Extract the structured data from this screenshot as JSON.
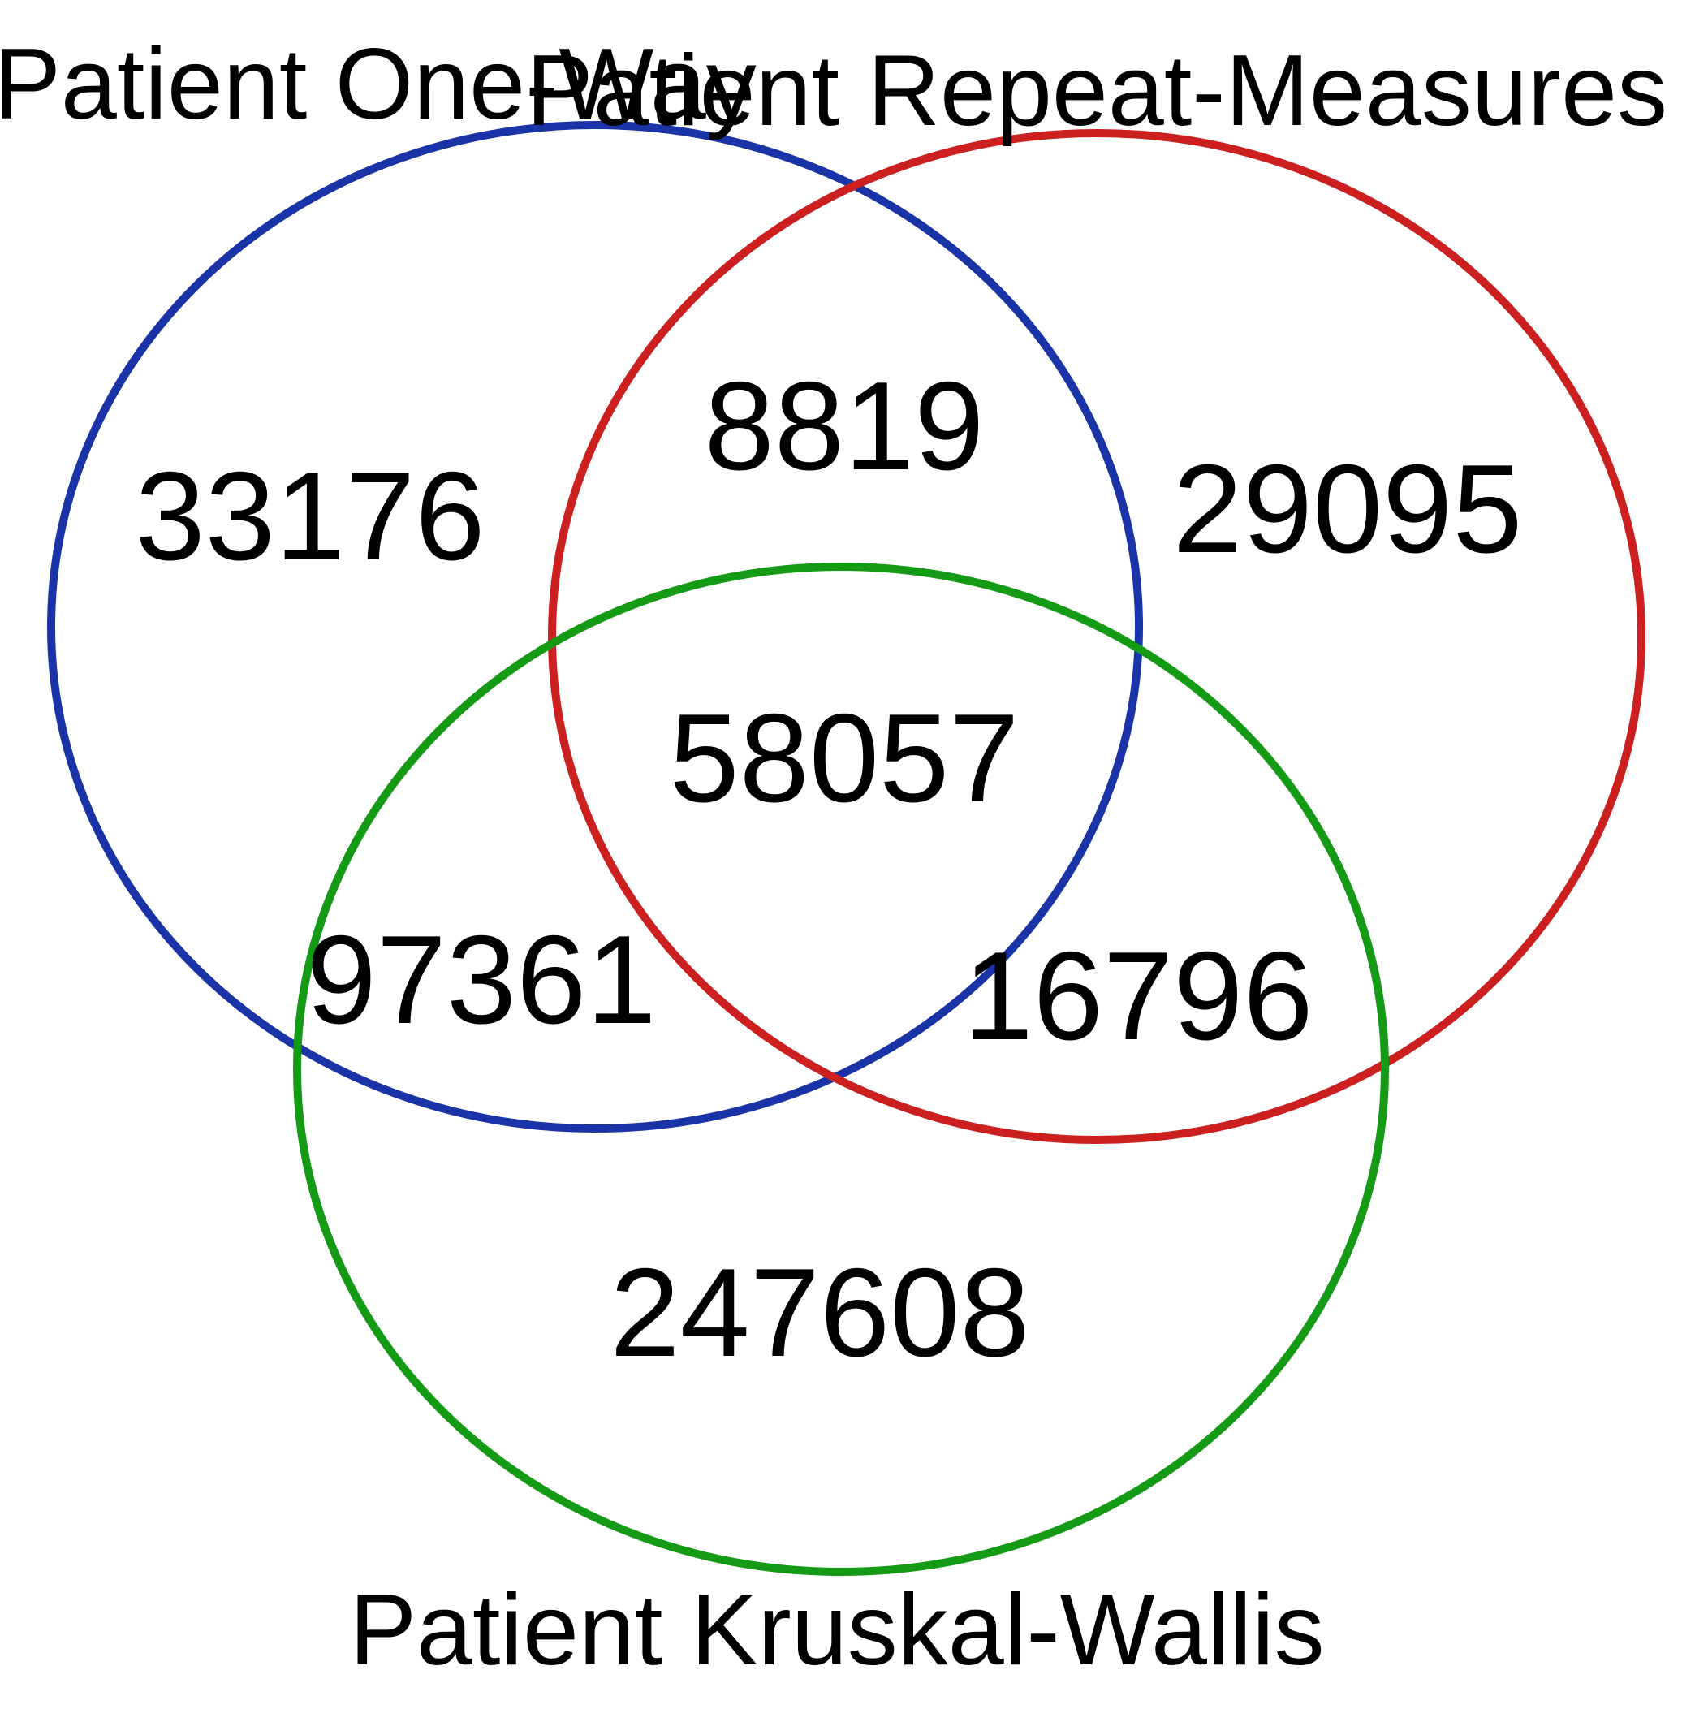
{
  "sets": [
    {
      "label": "Patient One-Way",
      "color": "#1a33a6"
    },
    {
      "label": "Patient Repeat-Measures",
      "color": "#cc1f1f"
    },
    {
      "label": "Patient Kruskal-Wallis",
      "color": "#149a14"
    }
  ],
  "regions": {
    "one_way_only": "33176",
    "one_way_and_repeat_measures": "8819",
    "repeat_measures_only": "29095",
    "all_three": "58057",
    "one_way_and_kruskal_wallis": "97361",
    "repeat_measures_and_kruskal_wallis": "16796",
    "kruskal_wallis_only": "247608"
  }
}
